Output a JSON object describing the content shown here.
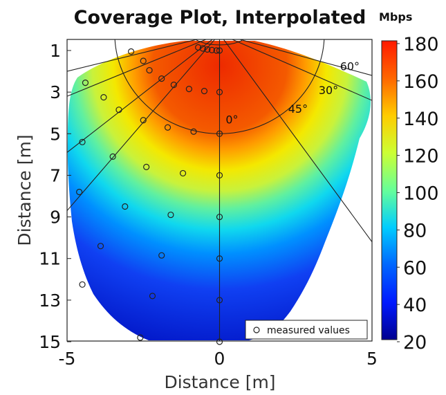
{
  "chart_data": {
    "type": "heatmap",
    "title": "Coverage Plot, Interpolated",
    "xlabel": "Distance [m]",
    "ylabel": "Distance [m]",
    "colorbar_unit": "Mbps",
    "xlim": [
      -5,
      5
    ],
    "ylim": [
      15,
      0.2
    ],
    "x_ticks": [
      "-5",
      "0",
      "5"
    ],
    "y_ticks": [
      "1",
      "3",
      "5",
      "7",
      "9",
      "11",
      "13",
      "15"
    ],
    "colorbar_range": [
      20,
      180
    ],
    "colorbar_ticks": [
      "180",
      "160",
      "140",
      "120",
      "100",
      "80",
      "60",
      "40",
      "20"
    ],
    "colormap": "jet",
    "angle_labels": [
      "0°",
      "30°",
      "45°",
      "60°"
    ],
    "legend": {
      "label": "measured values",
      "placement": "bottom-right"
    },
    "measured_values": [
      {
        "x": -2.9,
        "y": 1.05
      },
      {
        "x": -2.5,
        "y": 1.5
      },
      {
        "x": -2.3,
        "y": 1.95
      },
      {
        "x": -1.9,
        "y": 2.35
      },
      {
        "x": -1.5,
        "y": 2.65
      },
      {
        "x": -1.0,
        "y": 2.85
      },
      {
        "x": -0.5,
        "y": 2.95
      },
      {
        "x": 0,
        "y": 3.0
      },
      {
        "x": -4.4,
        "y": 2.55
      },
      {
        "x": -3.8,
        "y": 3.25
      },
      {
        "x": -3.3,
        "y": 3.85
      },
      {
        "x": -2.5,
        "y": 4.35
      },
      {
        "x": -1.7,
        "y": 4.7
      },
      {
        "x": -0.85,
        "y": 4.9
      },
      {
        "x": 0,
        "y": 5.0
      },
      {
        "x": -4.5,
        "y": 5.4
      },
      {
        "x": -3.5,
        "y": 6.1
      },
      {
        "x": -2.4,
        "y": 6.6
      },
      {
        "x": -1.2,
        "y": 6.9
      },
      {
        "x": 0,
        "y": 7.0
      },
      {
        "x": -4.6,
        "y": 7.8
      },
      {
        "x": -3.1,
        "y": 8.5
      },
      {
        "x": -1.6,
        "y": 8.9
      },
      {
        "x": 0,
        "y": 9.0
      },
      {
        "x": -3.9,
        "y": 10.4
      },
      {
        "x": -1.9,
        "y": 10.85
      },
      {
        "x": 0,
        "y": 11.0
      },
      {
        "x": -4.5,
        "y": 12.25
      },
      {
        "x": -2.2,
        "y": 12.8
      },
      {
        "x": 0,
        "y": 13.0
      },
      {
        "x": -2.6,
        "y": 14.8
      },
      {
        "x": 0,
        "y": 15.0
      },
      {
        "x": -0.7,
        "y": 0.85
      },
      {
        "x": -0.55,
        "y": 0.9
      },
      {
        "x": -0.4,
        "y": 0.95
      },
      {
        "x": -0.25,
        "y": 0.98
      },
      {
        "x": -0.1,
        "y": 1.0
      },
      {
        "x": 0,
        "y": 1.0
      }
    ]
  }
}
